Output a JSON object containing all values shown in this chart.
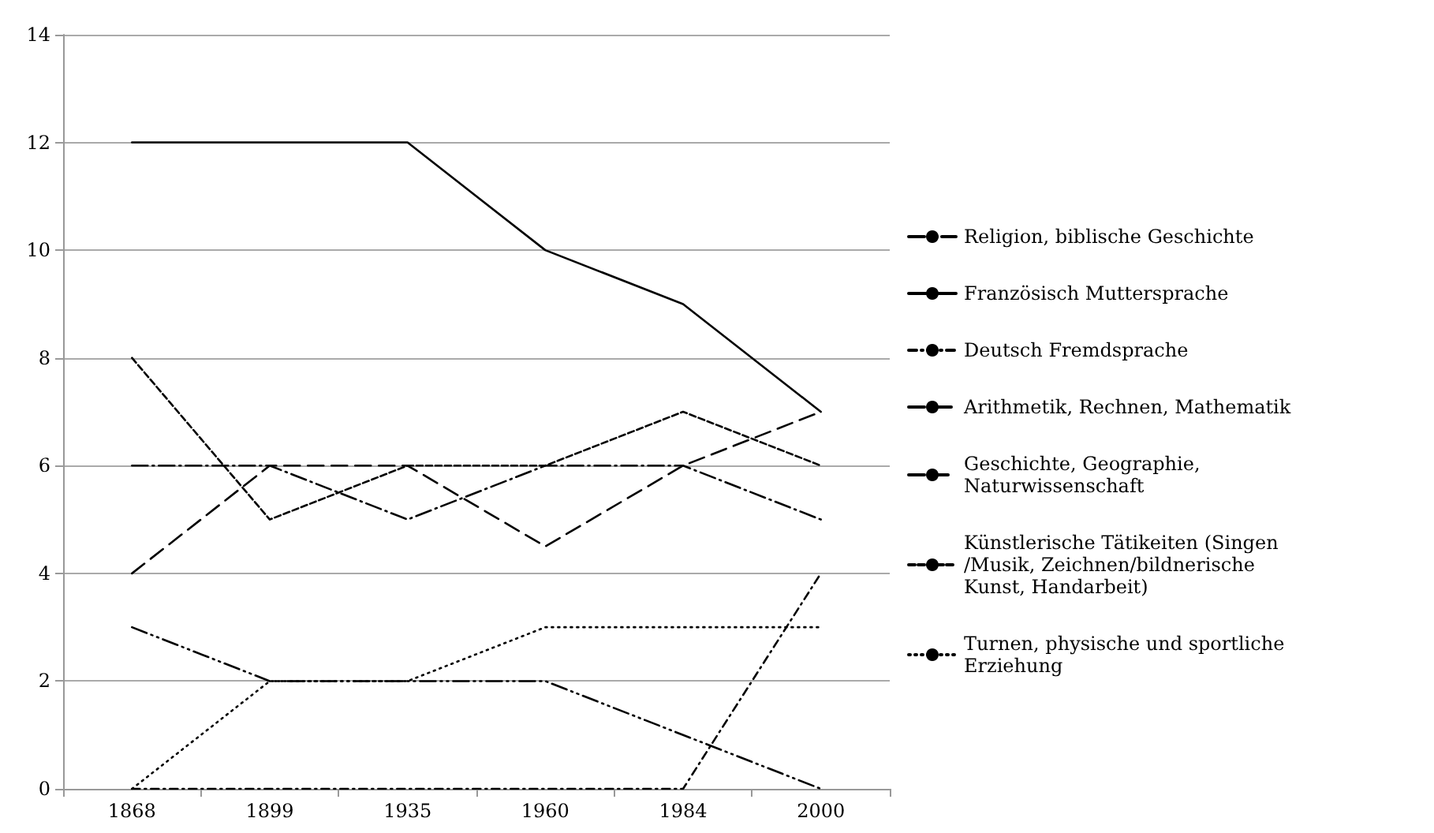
{
  "chart_data": {
    "type": "line",
    "categories": [
      "1868",
      "1899",
      "1935",
      "1960",
      "1984",
      "2000"
    ],
    "ylim": [
      0,
      14
    ],
    "yticks": [
      0,
      2,
      4,
      6,
      8,
      10,
      12,
      14
    ],
    "grid": "y",
    "legend": "right",
    "marker": "none",
    "series": [
      {
        "name": "Religion, biblische Geschichte",
        "color": "#000000",
        "line_style": "longdashdotdot",
        "values": [
          3,
          2,
          2,
          2,
          1,
          0
        ]
      },
      {
        "name": "Französisch Muttersprache",
        "color": "#000000",
        "line_style": "solid",
        "values": [
          12,
          12,
          12,
          10,
          9,
          7
        ]
      },
      {
        "name": "Deutsch Fremdsprache",
        "color": "#000000",
        "line_style": "dashdot",
        "values": [
          0,
          0,
          0,
          0,
          0,
          4
        ]
      },
      {
        "name": "Arithmetik, Rechnen, Mathematik",
        "color": "#000000",
        "line_style": "longdashdot",
        "values": [
          6,
          6,
          5,
          6,
          6,
          5
        ]
      },
      {
        "name": "Geschichte, Geographie, Naturwissenschaft",
        "color": "#000000",
        "line_style": "longdash",
        "values": [
          4,
          6,
          6,
          4.5,
          6,
          7
        ]
      },
      {
        "name": "Künstlerische Tätikeiten (Singen/Musik, Zeichnen/bildnerische Kunst, Handarbeit)",
        "color": "#000000",
        "line_style": "dashed",
        "values": [
          8,
          5,
          6,
          6,
          7,
          6
        ]
      },
      {
        "name": "Turnen, physische und sportliche Erziehung",
        "color": "#000000",
        "line_style": "dotted",
        "values": [
          0,
          2,
          2,
          3,
          3,
          3
        ]
      }
    ]
  }
}
